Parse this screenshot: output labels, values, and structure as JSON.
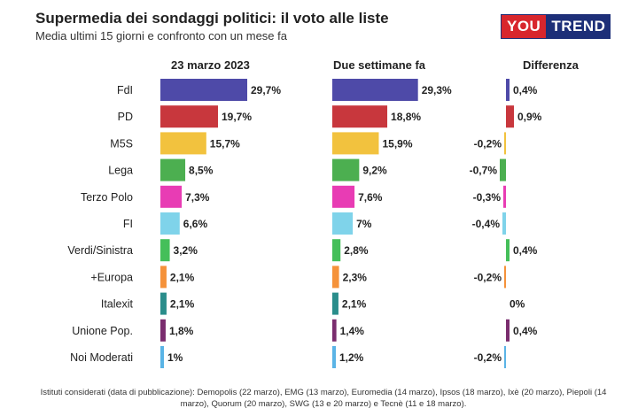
{
  "title": "Supermedia dei sondaggi politici: il voto alle liste",
  "subtitle": "Media ultimi 15 giorni e confronto con un mese fa",
  "logo": {
    "part1": "YOU",
    "part2": "TREND",
    "colors": {
      "you_bg": "#d8262d",
      "trend_bg": "#1d2f78"
    }
  },
  "columns": {
    "current": "23 marzo 2023",
    "previous": "Due settimane fa",
    "diff": "Differenza"
  },
  "footer": "Istituti considerati (data di pubblicazione): Demopolis (22 marzo), EMG (13 marzo), Euromedia (14 marzo), Ipsos (18 marzo), Ixè (20 marzo), Piepoli (14 marzo), Quorum (20 marzo), SWG (13 e 20 marzo) e Tecnè (11 e 18 marzo).",
  "chart_data": {
    "type": "bar",
    "orientation": "horizontal",
    "categories": [
      "FdI",
      "PD",
      "M5S",
      "Lega",
      "Terzo Polo",
      "FI",
      "Verdi/Sinistra",
      "+Europa",
      "Italexit",
      "Unione Pop.",
      "Noi Moderati"
    ],
    "colors": [
      "#4e4aa8",
      "#c8373d",
      "#f2c23e",
      "#4caf50",
      "#e83cb4",
      "#7fd3ea",
      "#45bf5a",
      "#f5923a",
      "#2a8d8b",
      "#7a2d6e",
      "#5ab4e6"
    ],
    "series": [
      {
        "name": "23 marzo 2023",
        "values": [
          29.7,
          19.7,
          15.7,
          8.5,
          7.3,
          6.6,
          3.2,
          2.1,
          2.1,
          1.8,
          1.0
        ],
        "labels": [
          "29,7%",
          "19,7%",
          "15,7%",
          "8,5%",
          "7,3%",
          "6,6%",
          "3,2%",
          "2,1%",
          "2,1%",
          "1,8%",
          "1%"
        ]
      },
      {
        "name": "Due settimane fa",
        "values": [
          29.3,
          18.8,
          15.9,
          9.2,
          7.6,
          7.0,
          2.8,
          2.3,
          2.1,
          1.4,
          1.2
        ],
        "labels": [
          "29,3%",
          "18,8%",
          "15,9%",
          "9,2%",
          "7,6%",
          "7%",
          "2,8%",
          "2,3%",
          "2,1%",
          "1,4%",
          "1,2%"
        ]
      },
      {
        "name": "Differenza",
        "values": [
          0.4,
          0.9,
          -0.2,
          -0.7,
          -0.3,
          -0.4,
          0.4,
          -0.2,
          0.0,
          0.4,
          -0.2
        ],
        "labels": [
          "0,4%",
          "0,9%",
          "-0,2%",
          "-0,7%",
          "-0,3%",
          "-0,4%",
          "0,4%",
          "-0,2%",
          "0%",
          "0,4%",
          "-0,2%"
        ]
      }
    ],
    "xlim": [
      0,
      30
    ],
    "diff_xlim": [
      -1,
      1
    ],
    "grid": false,
    "legend": "none"
  }
}
